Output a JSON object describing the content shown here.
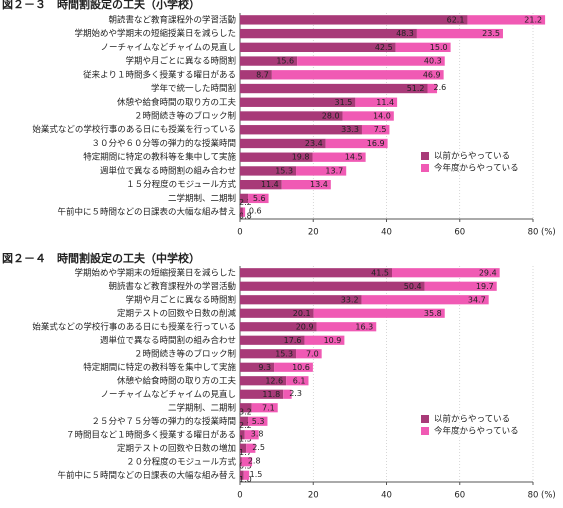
{
  "chart_data": [
    {
      "type": "bar",
      "orientation": "horizontal",
      "stacked": true,
      "title": "図２－３　時間割設定の工夫（小学校）",
      "categories": [
        "朝読書など教育課程外の学習活動",
        "学期始めや学期末の短縮授業日を減らした",
        "ノーチャイムなどチャイムの見直し",
        "学期や月ごとに異なる時間割",
        "従来より１時間多く授業する曜日がある",
        "学年で統一した時間割",
        "休憩や給食時間の取り方の工夫",
        "２時間続き等のブロック制",
        "始業式などの学校行事のある日にも授業を行っている",
        "３０分や６０分等の弾力的な授業時間",
        "特定期間に特定の教科等を集中して実施",
        "週単位で異なる時間割の組み合わせ",
        "１５分程度のモジュール方式",
        "二学期制、二期制",
        "午前中に５時間などの日課表の大幅な組み替え"
      ],
      "series": [
        {
          "name": "以前からやっている",
          "color": "#a83a78",
          "values": [
            62.1,
            48.3,
            42.5,
            15.6,
            8.7,
            51.2,
            31.5,
            28.0,
            33.3,
            23.4,
            19.8,
            15.3,
            11.4,
            2.2,
            0.8
          ],
          "value_labels": [
            "62.1",
            "48.3",
            "42.5",
            "15.6",
            "8.7",
            "51.2",
            "31.5",
            "28.0",
            "33.3",
            "23.4",
            "19.8",
            "15.3",
            "11.4",
            "2.2",
            "0.8"
          ]
        },
        {
          "name": "今年度からやっている",
          "color": "#f05ab4",
          "values": [
            21.2,
            23.5,
            15.0,
            40.3,
            46.9,
            2.6,
            11.4,
            14.0,
            7.5,
            16.9,
            14.5,
            13.7,
            13.4,
            5.6,
            0.6
          ],
          "value_labels": [
            "21.2",
            "23.5",
            "15.0",
            "40.3",
            "46.9",
            "2.6",
            "11.4",
            "14.0",
            "7.5",
            "16.9",
            "14.5",
            "13.7",
            "13.4",
            "5.6",
            "0.6"
          ]
        }
      ],
      "xlim": [
        0,
        80
      ],
      "xticks": [
        0,
        20,
        40,
        60,
        80
      ],
      "x_label": "(%)",
      "grid": true,
      "legend": "lower right"
    },
    {
      "type": "bar",
      "orientation": "horizontal",
      "stacked": true,
      "title": "図２－４　時間割設定の工夫（中学校）",
      "categories": [
        "学期始めや学期末の短縮授業日を減らした",
        "朝読書など教育課程外の学習活動",
        "学期や月ごとに異なる時間割",
        "定期テストの回数や日数の削減",
        "始業式などの学校行事のある日にも授業を行っている",
        "週単位で異なる時間割の組み合わせ",
        "２時間続き等のブロック制",
        "特定期間に特定の教科等を集中して実施",
        "休憩や給食時間の取り方の工夫",
        "ノーチャイムなどチャイムの見直し",
        "二学期制、二期制",
        "２５分や７５分等の弾力的な授業時間",
        "７時間目など１時間多く授業する曜日がある",
        "定期テストの回数や日数の増加",
        "２０分程度のモジュール方式",
        "午前中に５時間などの日課表の大幅な組み替え"
      ],
      "series": [
        {
          "name": "以前からやっている",
          "color": "#a83a78",
          "values": [
            41.5,
            50.4,
            33.2,
            20.1,
            20.9,
            17.6,
            15.3,
            9.3,
            12.6,
            11.8,
            3.2,
            2.2,
            1.3,
            1.7,
            0.5,
            1.0
          ],
          "value_labels": [
            "41.5",
            "50.4",
            "33.2",
            "20.1",
            "20.9",
            "17.6",
            "15.3",
            "9.3",
            "12.6",
            "11.8",
            "3.2",
            "2.2",
            "1.3",
            "1.7",
            "0.5",
            "1.0"
          ]
        },
        {
          "name": "今年度からやっている",
          "color": "#f05ab4",
          "values": [
            29.4,
            19.7,
            34.7,
            35.8,
            16.3,
            10.9,
            7.0,
            10.6,
            6.1,
            2.3,
            7.1,
            5.3,
            3.8,
            2.5,
            2.8,
            1.5
          ],
          "value_labels": [
            "29.4",
            "19.7",
            "34.7",
            "35.8",
            "16.3",
            "10.9",
            "7.0",
            "10.6",
            "6.1",
            "2.3",
            "7.1",
            "5.3",
            "3.8",
            "2.5",
            "2.8",
            "1.5"
          ]
        }
      ],
      "xlim": [
        0,
        80
      ],
      "xticks": [
        0,
        20,
        40,
        60,
        80
      ],
      "x_label": "(%)",
      "grid": true,
      "legend": "lower right"
    }
  ]
}
